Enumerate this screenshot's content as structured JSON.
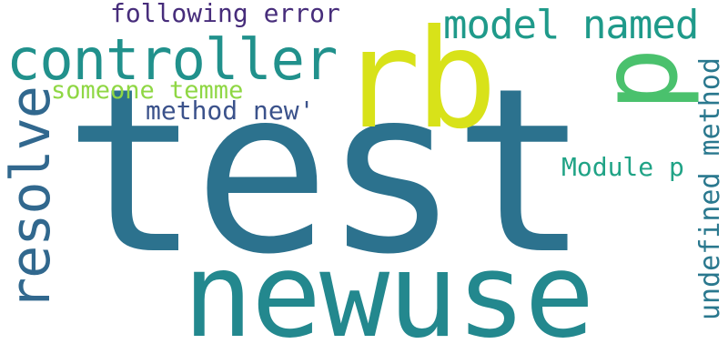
{
  "words": {
    "test": {
      "text": "test",
      "color": "#2c728e"
    },
    "newuse": {
      "text": "newuse",
      "color": "#23888e"
    },
    "controller": {
      "text": "controller",
      "color": "#21918c"
    },
    "rb": {
      "text": "rb",
      "color": "#d8e219"
    },
    "p": {
      "text": "p",
      "color": "#4ac16d"
    },
    "model_named": {
      "text": "model named",
      "color": "#1f9a8a"
    },
    "resolve": {
      "text": "resolve",
      "color": "#31688e"
    },
    "following": {
      "text": "following error",
      "color": "#472d7b"
    },
    "someone": {
      "text": "someone temme",
      "color": "#8fd744"
    },
    "method_new": {
      "text": "method new'",
      "color": "#3b528b"
    },
    "module_p": {
      "text": "Module p",
      "color": "#20a386"
    },
    "undefined": {
      "text": "undefined method",
      "color": "#2a788e"
    }
  }
}
